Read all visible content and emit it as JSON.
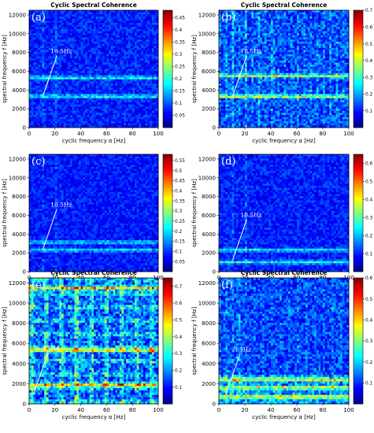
{
  "chart_data": [
    {
      "type": "heatmap",
      "panel": "(a)",
      "title": "Cyclic Spectral Coherence",
      "xlabel": "cyclic frequency α [Hz]",
      "ylabel": "spectral frequency f [Hz]",
      "xlim": [
        0,
        100
      ],
      "ylim": [
        0,
        12500
      ],
      "xticks": [
        0,
        20,
        40,
        60,
        80,
        100
      ],
      "yticks": [
        0,
        2000,
        4000,
        6000,
        8000,
        10000,
        12000
      ],
      "colorbar": {
        "min": 0,
        "max": 0.48,
        "ticks": [
          "0.05",
          "0.1",
          "0.15",
          "0.2",
          "0.25",
          "0.3",
          "0.35",
          "0.4",
          "0.45"
        ]
      },
      "bands_f": [
        3300,
        5300
      ],
      "lines_alpha": [
        10.5,
        21
      ],
      "annotation": {
        "text": "10.5Hz",
        "at": [
          10.5,
          3300
        ]
      },
      "intensity": 0.25,
      "pattern": "quiet"
    },
    {
      "type": "heatmap",
      "panel": "(b)",
      "title": "Cyclic Spectral Coherence",
      "xlabel": "cyclic frequency α [Hz]",
      "ylabel": "spectral frequency f [Hz]",
      "xlim": [
        0,
        100
      ],
      "ylim": [
        0,
        12500
      ],
      "xticks": [
        0,
        20,
        40,
        60,
        80,
        100
      ],
      "yticks": [
        0,
        2000,
        4000,
        6000,
        8000,
        10000,
        12000
      ],
      "colorbar": {
        "min": 0,
        "max": 0.7,
        "ticks": [
          "0.1",
          "0.2",
          "0.3",
          "0.4",
          "0.5",
          "0.6",
          "0.7"
        ]
      },
      "bands_f": [
        3300,
        5500
      ],
      "lines_alpha": [
        10.5,
        21,
        31.5,
        42
      ],
      "annotation": {
        "text": "10.5Hz",
        "at": [
          10.5,
          3300
        ]
      },
      "intensity": 0.38,
      "pattern": "stripes"
    },
    {
      "type": "heatmap",
      "panel": "(c)",
      "title": "",
      "xlabel": "cyclic frequency α [Hz]",
      "ylabel": "spectral frequency f [Hz]",
      "xlim": [
        0,
        100
      ],
      "ylim": [
        0,
        12500
      ],
      "xticks": [
        0,
        20,
        40,
        60,
        80,
        100
      ],
      "yticks": [
        0,
        2000,
        4000,
        6000,
        8000,
        10000,
        12000
      ],
      "colorbar": {
        "min": 0,
        "max": 0.58,
        "ticks": [
          "0.05",
          "0.1",
          "0.15",
          "0.2",
          "0.25",
          "0.3",
          "0.35",
          "0.4",
          "0.45",
          "0.5",
          "0.55"
        ]
      },
      "bands_f": [
        2300,
        3100
      ],
      "lines_alpha": [
        10.5,
        21
      ],
      "annotation": {
        "text": "10.5Hz",
        "at": [
          10.5,
          2300
        ]
      },
      "intensity": 0.22,
      "pattern": "quiet"
    },
    {
      "type": "heatmap",
      "panel": "(d)",
      "title": "",
      "xlabel": "cyclic frequency α [Hz]",
      "ylabel": "spectral frequency f [Hz]",
      "xlim": [
        0,
        100
      ],
      "ylim": [
        0,
        12500
      ],
      "xticks": [
        0,
        20,
        40,
        60,
        80,
        100
      ],
      "yticks": [
        0,
        2000,
        4000,
        6000,
        8000,
        10000,
        12000
      ],
      "colorbar": {
        "min": 0,
        "max": 0.65,
        "ticks": [
          "0.1",
          "0.2",
          "0.3",
          "0.4",
          "0.5",
          "0.6"
        ]
      },
      "bands_f": [
        1000,
        2300
      ],
      "lines_alpha": [
        10.5,
        21
      ],
      "annotation": {
        "text": "10.5Hz",
        "at": [
          10.5,
          1200
        ]
      },
      "intensity": 0.24,
      "pattern": "quiet"
    },
    {
      "type": "heatmap",
      "panel": "(e)",
      "title": "Cyclic Spectral Coherence",
      "xlabel": "cyclic frequency α [Hz]",
      "ylabel": "spectral frequency f [Hz]",
      "xlim": [
        0,
        100
      ],
      "ylim": [
        0,
        12500
      ],
      "xticks": [
        0,
        20,
        40,
        60,
        80,
        100
      ],
      "yticks": [
        0,
        2000,
        4000,
        6000,
        8000,
        10000,
        12000
      ],
      "colorbar": {
        "min": 0,
        "max": 0.75,
        "ticks": [
          "0.1",
          "0.2",
          "0.3",
          "0.4",
          "0.5",
          "0.6",
          "0.7"
        ]
      },
      "bands_f": [
        1900,
        5300,
        11500
      ],
      "lines_alpha": [
        3.5,
        36,
        38
      ],
      "annotation": {
        "text": "3.5Hz",
        "at": [
          3.5,
          1000
        ]
      },
      "intensity": 0.45,
      "pattern": "grid"
    },
    {
      "type": "heatmap",
      "panel": "(f)",
      "title": "Cyclic Spectral Coherence",
      "xlabel": "cyclic frequency α [Hz]",
      "ylabel": "spectral frequency f [Hz]",
      "xlim": [
        0,
        100
      ],
      "ylim": [
        0,
        12500
      ],
      "xticks": [
        0,
        20,
        40,
        60,
        80,
        100
      ],
      "yticks": [
        0,
        2000,
        4000,
        6000,
        8000,
        10000,
        12000
      ],
      "colorbar": {
        "min": 0,
        "max": 0.6,
        "ticks": [
          "0.1",
          "0.2",
          "0.3",
          "0.4",
          "0.5",
          "0.6"
        ]
      },
      "bands_f": [
        700,
        1600,
        2400
      ],
      "lines_alpha": [
        5.3,
        10.6,
        15.9
      ],
      "annotation": {
        "text": "5.3Hz",
        "at": [
          5.3,
          900
        ]
      },
      "intensity": 0.36,
      "pattern": "lowbands"
    }
  ]
}
